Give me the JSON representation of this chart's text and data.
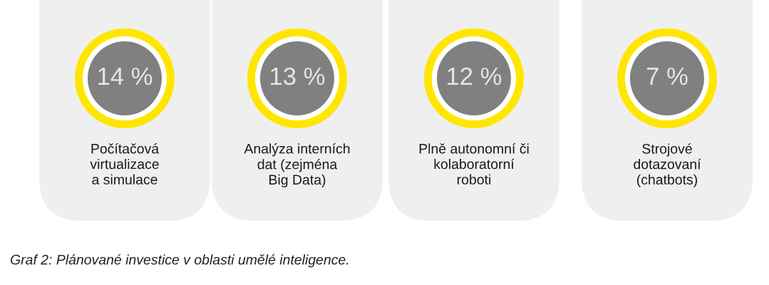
{
  "chart_data": {
    "type": "other",
    "categories": [
      "Počítačová\nvirtualizace\na simulace",
      "Analýza interních\ndat (zejména\nBig Data)",
      "Plně autonomní či\nkolaboratorní\nroboti",
      "Strojové\ndotazovaní\n(chatbots)"
    ],
    "values": [
      14,
      13,
      12,
      7
    ],
    "value_labels": [
      "14 %",
      "13 %",
      "12 %",
      "7 %"
    ],
    "color": "#808080",
    "annotations": [
      "Graf 2: Plánované investice v oblasti umělé inteligence."
    ]
  }
}
